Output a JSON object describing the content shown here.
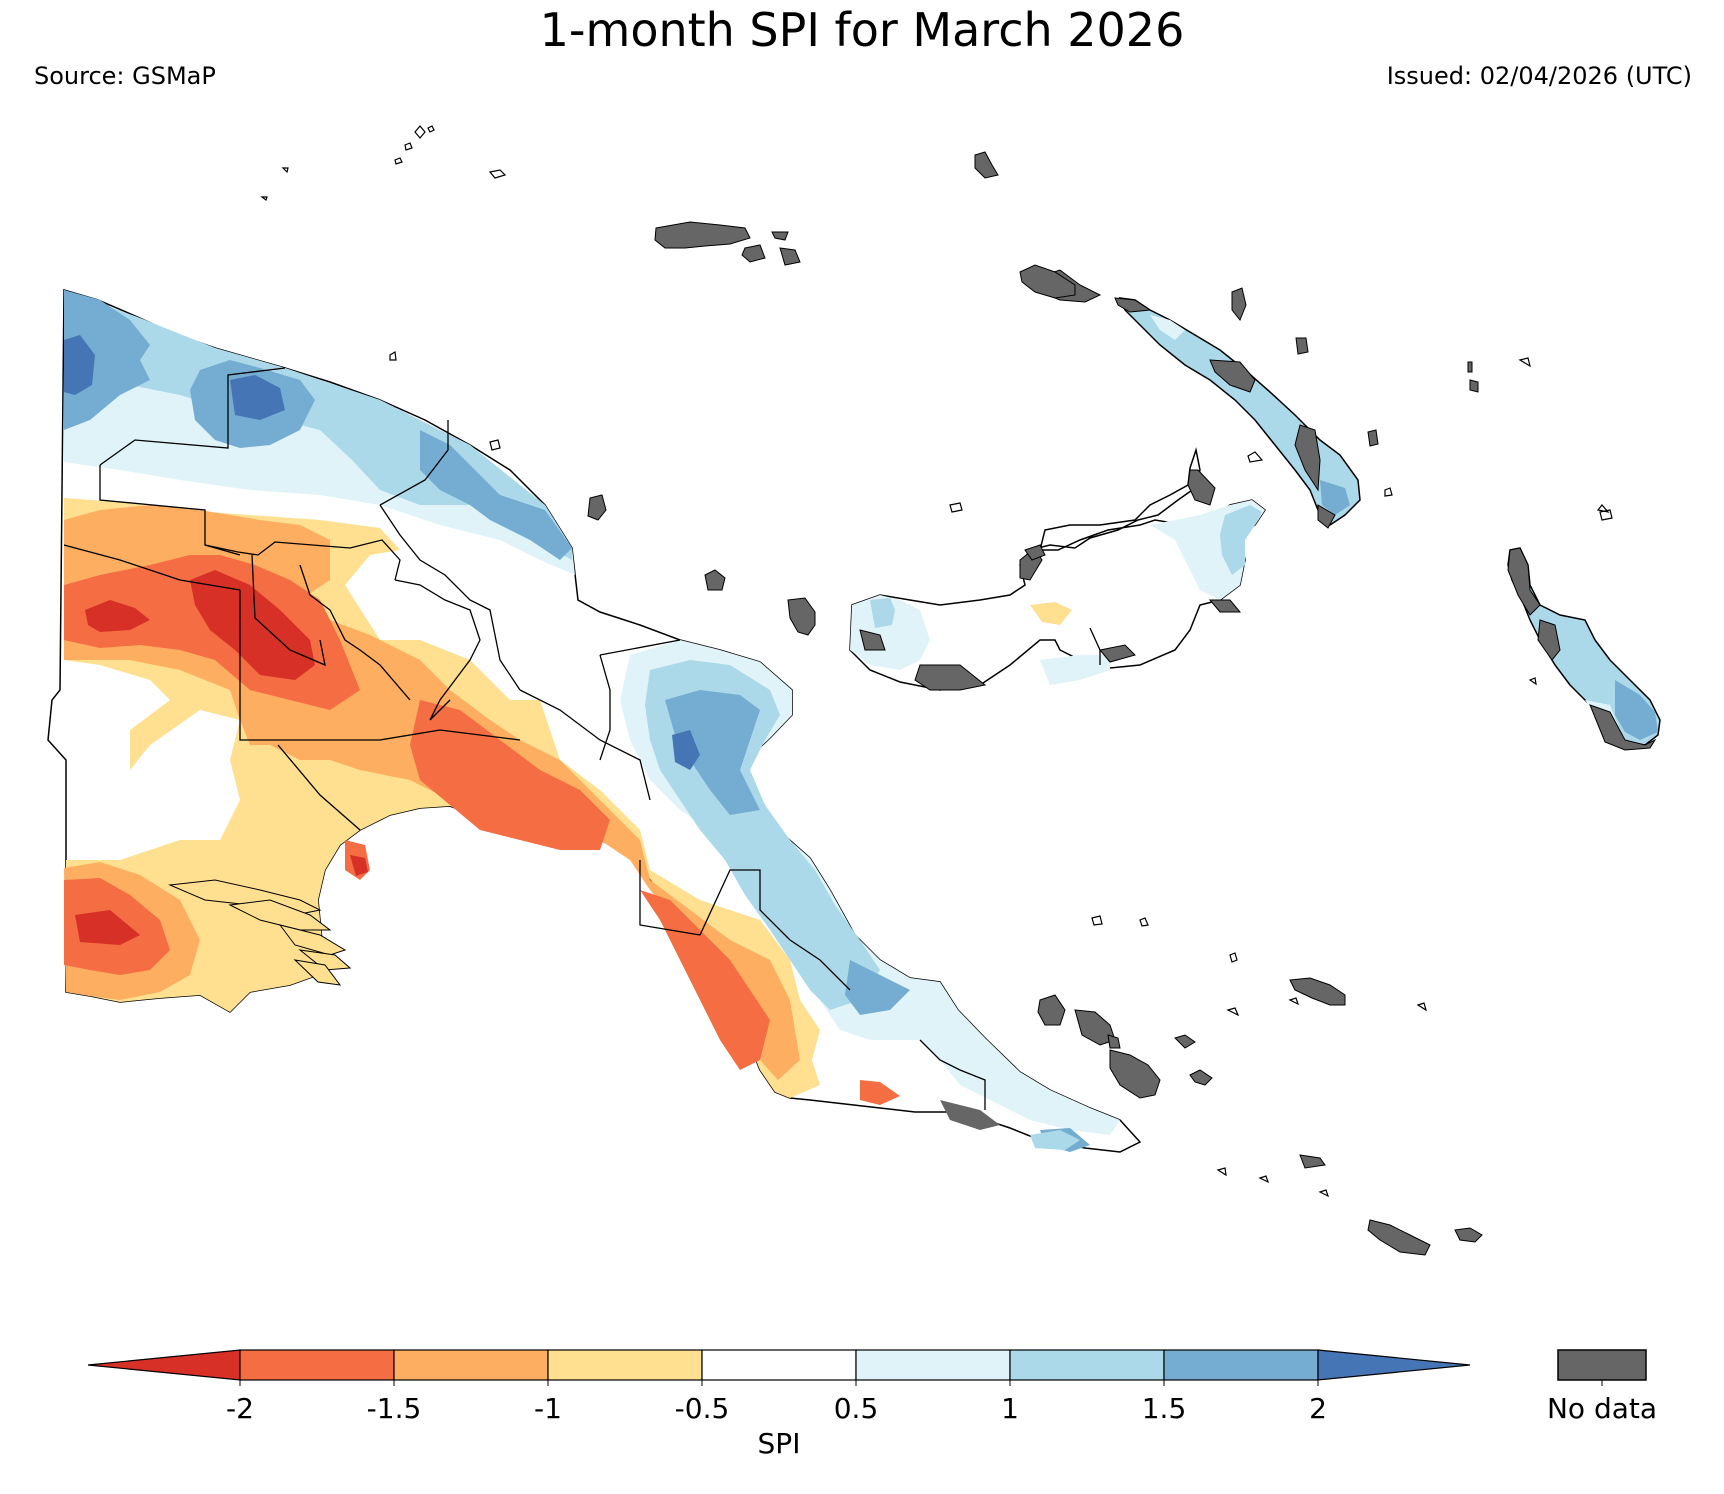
{
  "header": {
    "title": "1-month SPI for March 2026",
    "source": "Source: GSMaP",
    "issued": "Issued: 02/04/2026 (UTC)"
  },
  "legend": {
    "axis_label": "SPI",
    "no_data_label": "No data",
    "no_data_color": "#666666",
    "ticks": [
      "-2",
      "-1.5",
      "-1",
      "-0.5",
      "0.5",
      "1",
      "1.5",
      "2"
    ],
    "classes": [
      {
        "range": "< -2",
        "color": "#d73027"
      },
      {
        "range": "-2 to -1.5",
        "color": "#f46d43"
      },
      {
        "range": "-1.5 to -1",
        "color": "#fdae61"
      },
      {
        "range": "-1 to -0.5",
        "color": "#fee090"
      },
      {
        "range": "-0.5 to 0.5",
        "color": "#ffffff"
      },
      {
        "range": "0.5 to 1",
        "color": "#e0f3f8"
      },
      {
        "range": "1 to 1.5",
        "color": "#abd9e9"
      },
      {
        "range": "1.5 to 2",
        "color": "#74add1"
      },
      {
        "range": "> 2",
        "color": "#4575b4"
      }
    ]
  }
}
